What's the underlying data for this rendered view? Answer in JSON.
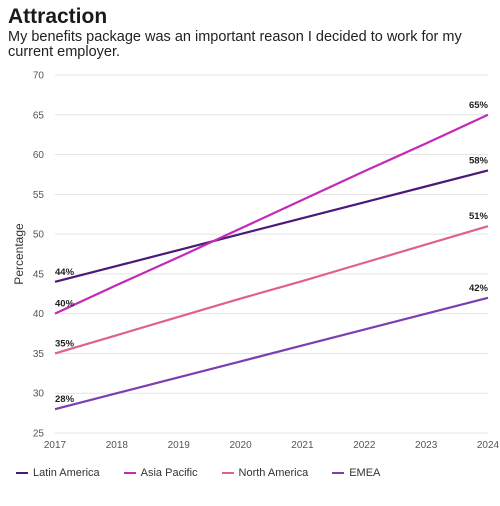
{
  "header": {
    "title": "Attraction",
    "subtitle": "My benefits package was an important reason I decided to work for my current employer."
  },
  "chart_data": {
    "type": "line",
    "x": [
      2017,
      2018,
      2019,
      2020,
      2021,
      2022,
      2023,
      2024
    ],
    "ylabel": "Percentage",
    "ylim": [
      25,
      70
    ],
    "yticks": [
      25,
      30,
      35,
      40,
      45,
      50,
      55,
      60,
      65,
      70
    ],
    "grid": true,
    "legend_position": "bottom",
    "series": [
      {
        "name": "Latin America",
        "color": "#4a1a78",
        "values": [
          44,
          46,
          48,
          50,
          52,
          54,
          56,
          58
        ],
        "start_label": "44%",
        "end_label": "58%"
      },
      {
        "name": "Asia Pacific",
        "color": "#c22ab8",
        "values": [
          40,
          43.6,
          47.1,
          50.7,
          54.3,
          57.9,
          61.4,
          65
        ],
        "start_label": "40%",
        "end_label": "65%"
      },
      {
        "name": "North America",
        "color": "#e0608e",
        "values": [
          35,
          37.3,
          39.6,
          41.9,
          44.1,
          46.4,
          48.7,
          51
        ],
        "start_label": "35%",
        "end_label": "51%"
      },
      {
        "name": "EMEA",
        "color": "#7b3fb0",
        "values": [
          28,
          30,
          32,
          34,
          36,
          38,
          40,
          42
        ],
        "start_label": "28%",
        "end_label": "42%"
      }
    ]
  }
}
